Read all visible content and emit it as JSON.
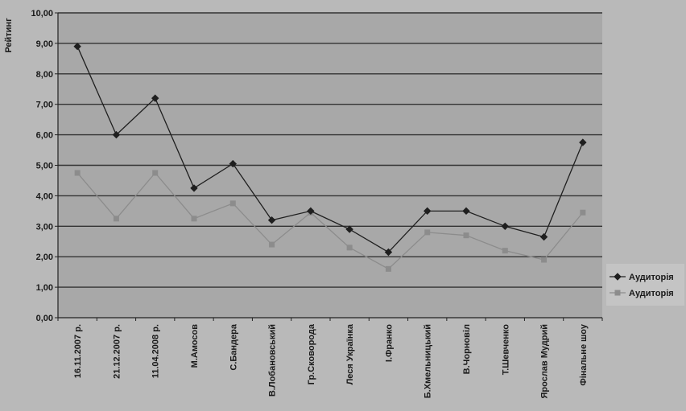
{
  "chart_data": {
    "type": "line",
    "title": "",
    "xlabel": "",
    "ylabel": "Рейтинг",
    "ylim": [
      0,
      10
    ],
    "y_ticks": [
      "0,00",
      "1,00",
      "2,00",
      "3,00",
      "4,00",
      "5,00",
      "6,00",
      "7,00",
      "8,00",
      "9,00",
      "10,00"
    ],
    "grid": true,
    "legend_position": "right",
    "categories": [
      "16.11.2007 р.",
      "21.12.2007 р.",
      "11.04.2008 р.",
      "М.Амосов",
      "С.Бандера",
      "В.Лобановський",
      "Гр.Сковорода",
      "Леся Українка",
      "І.Франко",
      "Б.Хмельницький",
      "В.Чорновіл",
      "Т.Шевченко",
      "Ярослав Мудрий",
      "Фінальне шоу"
    ],
    "series": [
      {
        "name": "Аудиторія",
        "color": "#1f1f1f",
        "marker": "diamond",
        "values": [
          8.9,
          6.0,
          7.2,
          4.25,
          5.05,
          3.2,
          3.5,
          2.9,
          2.15,
          3.5,
          3.5,
          3.0,
          2.65,
          5.75
        ]
      },
      {
        "name": "Аудиторія",
        "color": "#8c8c8c",
        "marker": "square",
        "values": [
          4.75,
          3.25,
          4.75,
          3.25,
          3.75,
          2.4,
          3.45,
          2.3,
          1.6,
          2.8,
          2.7,
          2.2,
          1.9,
          3.45
        ]
      }
    ]
  }
}
